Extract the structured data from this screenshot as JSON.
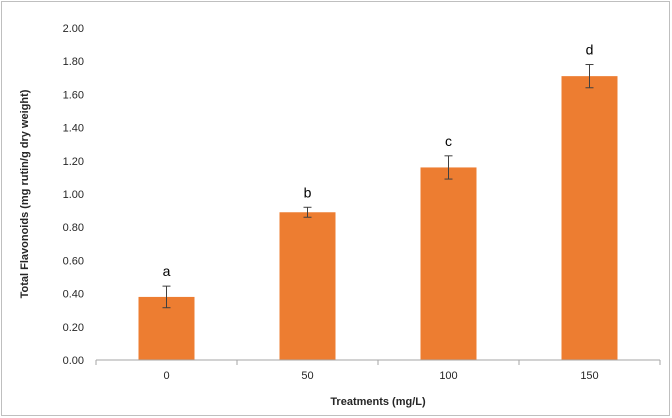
{
  "chart_data": {
    "type": "bar",
    "categories": [
      "0",
      "50",
      "100",
      "150"
    ],
    "values": [
      0.38,
      0.89,
      1.16,
      1.71
    ],
    "errors": [
      0.065,
      0.03,
      0.07,
      0.07
    ],
    "significance_letters": [
      "a",
      "b",
      "c",
      "d"
    ],
    "xlabel": "Treatments (mg/L)",
    "ylabel": "Total Flavonoids (mg rutin/g dry weight)",
    "ylim": [
      0,
      2.0
    ],
    "yticks": [
      "0.00",
      "0.20",
      "0.40",
      "0.60",
      "0.80",
      "1.00",
      "1.20",
      "1.40",
      "1.60",
      "1.80",
      "2.00"
    ],
    "grid": false,
    "legend": "none",
    "colors": {
      "bar": "#ed7d31",
      "axis": "#a6a6a6",
      "error_bar": "#404040"
    }
  }
}
